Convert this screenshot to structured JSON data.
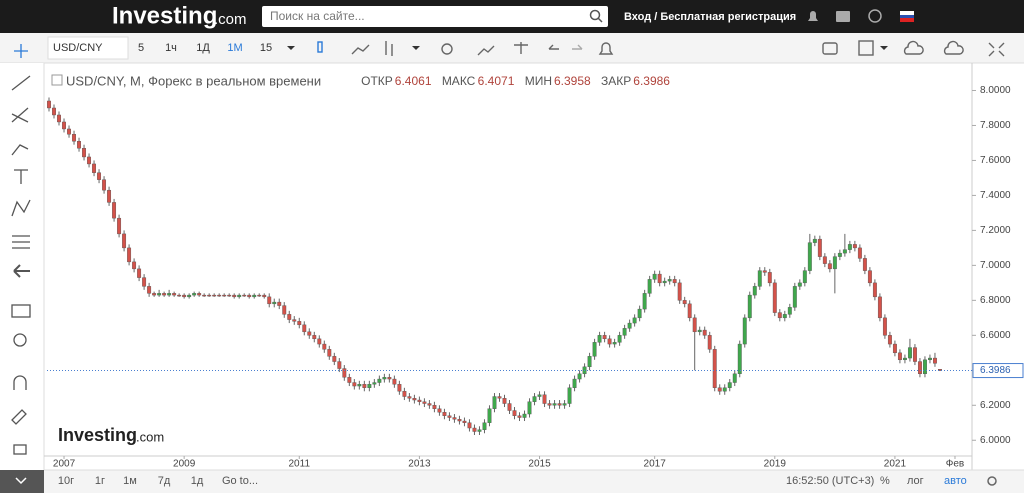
{
  "ui": {
    "logo": "Investing",
    "logo_suffix": ".com",
    "search_placeholder": "Поиск на сайте...",
    "login": "Вход / Бесплатная регистрация",
    "symbol": "USD/CNY",
    "intervals": [
      "5",
      "1ч",
      "1Д",
      "1М",
      "15"
    ],
    "ranges": [
      "10г",
      "1г",
      "1м",
      "7д",
      "1д",
      "Go to..."
    ],
    "clock": "16:52:50 (UTC+3)",
    "percent": "%",
    "log": "лог",
    "auto": "авто",
    "watermark": "Investing",
    "watermark_suffix": ".com"
  },
  "chart_data": {
    "type": "candlestick",
    "title": "USD/CNY, M, Форекс в реальном времени",
    "ohlc_labels": {
      "open": "ОТКР",
      "high": "МАКС",
      "low": "МИН",
      "close": "ЗАКР"
    },
    "colors": {
      "up": "#3fa84c",
      "down": "#d4524a"
    },
    "grid": false,
    "xlim": [
      -0.4,
      184.4
    ],
    "xticks": [
      {
        "value": 3,
        "label": "2007"
      },
      {
        "value": 27,
        "label": "2009"
      },
      {
        "value": 50,
        "label": "2011"
      },
      {
        "value": 74,
        "label": "2013"
      },
      {
        "value": 98,
        "label": "2015"
      },
      {
        "value": 121,
        "label": "2017"
      },
      {
        "value": 145,
        "label": "2019"
      },
      {
        "value": 169,
        "label": "2021"
      },
      {
        "value": 181,
        "label": "Фев"
      }
    ],
    "ylim": [
      5.91,
      8.14
    ],
    "yticks": [
      {
        "value": 6,
        "label": "6.0000"
      },
      {
        "value": 6.2,
        "label": "6.2000"
      },
      {
        "value": 6.4,
        "label": "6.4000"
      },
      {
        "value": 6.6,
        "label": "6.6000"
      },
      {
        "value": 6.8,
        "label": "6.8000"
      },
      {
        "value": 7,
        "label": "7.0000"
      },
      {
        "value": 7.2,
        "label": "7.2000"
      },
      {
        "value": 7.4,
        "label": "7.4000"
      },
      {
        "value": 7.6,
        "label": "7.6000"
      },
      {
        "value": 7.8,
        "label": "7.8000"
      },
      {
        "value": 8,
        "label": "8.0000"
      }
    ],
    "open": [
      7.94,
      7.9,
      7.86,
      7.82,
      7.78,
      7.75,
      7.71,
      7.67,
      7.62,
      7.58,
      7.53,
      7.49,
      7.43,
      7.36,
      7.27,
      7.18,
      7.1,
      7.02,
      6.98,
      6.93,
      6.88,
      6.84,
      6.83,
      6.84,
      6.83,
      6.84,
      6.83,
      6.83,
      6.82,
      6.83,
      6.84,
      6.83,
      6.83,
      6.83,
      6.83,
      6.83,
      6.83,
      6.83,
      6.82,
      6.83,
      6.83,
      6.82,
      6.83,
      6.83,
      6.82,
      6.78,
      6.79,
      6.77,
      6.72,
      6.69,
      6.68,
      6.66,
      6.62,
      6.6,
      6.58,
      6.55,
      6.52,
      6.48,
      6.45,
      6.41,
      6.36,
      6.33,
      6.31,
      6.32,
      6.3,
      6.32,
      6.33,
      6.35,
      6.36,
      6.35,
      6.32,
      6.28,
      6.25,
      6.24,
      6.23,
      6.22,
      6.21,
      6.2,
      6.18,
      6.16,
      6.14,
      6.13,
      6.12,
      6.11,
      6.1,
      6.07,
      6.05,
      6.06,
      6.1,
      6.18,
      6.25,
      6.24,
      6.21,
      6.17,
      6.14,
      6.13,
      6.15,
      6.22,
      6.25,
      6.26,
      6.21,
      6.2,
      6.21,
      6.2,
      6.21,
      6.3,
      6.35,
      6.38,
      6.42,
      6.48,
      6.56,
      6.6,
      6.58,
      6.55,
      6.56,
      6.6,
      6.64,
      6.67,
      6.7,
      6.75,
      6.84,
      6.92,
      6.95,
      6.9,
      6.91,
      6.92,
      6.9,
      6.8,
      6.78,
      6.7,
      6.62,
      6.63,
      6.6,
      6.52,
      6.3,
      6.28,
      6.3,
      6.33,
      6.38,
      6.55,
      6.7,
      6.83,
      6.88,
      6.97,
      6.96,
      6.9,
      6.73,
      6.7,
      6.72,
      6.76,
      6.88,
      6.9,
      6.97,
      7.13,
      7.15,
      7.05,
      7.01,
      6.98,
      7.05,
      7.07,
      7.09,
      7.12,
      7.1,
      7.04,
      6.97,
      6.9,
      6.82,
      6.7,
      6.6,
      6.55,
      6.5,
      6.46,
      6.47,
      6.53,
      6.45,
      6.38,
      6.46,
      6.47,
      6.4061
    ],
    "high": [
      7.96,
      7.92,
      7.88,
      7.84,
      7.8,
      7.77,
      7.73,
      7.69,
      7.64,
      7.6,
      7.55,
      7.51,
      7.45,
      7.38,
      7.29,
      7.2,
      7.12,
      7.04,
      7.0,
      6.95,
      6.9,
      6.85,
      6.86,
      6.85,
      6.86,
      6.85,
      6.84,
      6.84,
      6.84,
      6.85,
      6.85,
      6.84,
      6.84,
      6.84,
      6.84,
      6.84,
      6.84,
      6.84,
      6.84,
      6.84,
      6.84,
      6.84,
      6.84,
      6.84,
      6.84,
      6.81,
      6.81,
      6.79,
      6.74,
      6.71,
      6.7,
      6.68,
      6.64,
      6.62,
      6.6,
      6.57,
      6.54,
      6.5,
      6.47,
      6.43,
      6.38,
      6.35,
      6.34,
      6.34,
      6.34,
      6.35,
      6.37,
      6.38,
      6.38,
      6.37,
      6.34,
      6.3,
      6.27,
      6.26,
      6.25,
      6.24,
      6.23,
      6.22,
      6.2,
      6.18,
      6.16,
      6.15,
      6.14,
      6.13,
      6.12,
      6.09,
      6.08,
      6.12,
      6.2,
      6.27,
      6.27,
      6.26,
      6.23,
      6.19,
      6.16,
      6.17,
      6.24,
      6.27,
      6.28,
      6.28,
      6.23,
      6.23,
      6.23,
      6.23,
      6.32,
      6.37,
      6.4,
      6.44,
      6.5,
      6.58,
      6.62,
      6.62,
      6.6,
      6.58,
      6.62,
      6.66,
      6.69,
      6.72,
      6.77,
      6.86,
      6.94,
      6.97,
      6.97,
      6.93,
      6.94,
      6.94,
      6.92,
      6.82,
      6.8,
      6.72,
      6.65,
      6.65,
      6.62,
      6.54,
      6.32,
      6.32,
      6.35,
      6.4,
      6.57,
      6.72,
      6.85,
      6.9,
      6.99,
      6.99,
      6.98,
      6.92,
      6.75,
      6.74,
      6.78,
      6.9,
      6.92,
      6.99,
      7.18,
      7.17,
      7.17,
      7.07,
      7.03,
      7.07,
      7.09,
      7.18,
      7.14,
      7.14,
      7.12,
      7.06,
      6.99,
      6.92,
      6.84,
      6.72,
      6.62,
      6.57,
      6.52,
      6.49,
      6.58,
      6.55,
      6.47,
      6.48,
      6.49,
      6.5,
      6.4071
    ],
    "low": [
      7.88,
      7.84,
      7.8,
      7.76,
      7.73,
      7.69,
      7.65,
      7.6,
      7.56,
      7.51,
      7.47,
      7.41,
      7.34,
      7.25,
      7.16,
      7.08,
      7.0,
      6.96,
      6.91,
      6.86,
      6.82,
      6.82,
      6.82,
      6.82,
      6.82,
      6.82,
      6.82,
      6.81,
      6.81,
      6.82,
      6.82,
      6.82,
      6.82,
      6.82,
      6.82,
      6.82,
      6.82,
      6.81,
      6.81,
      6.82,
      6.81,
      6.81,
      6.82,
      6.81,
      6.76,
      6.76,
      6.75,
      6.7,
      6.67,
      6.66,
      6.64,
      6.6,
      6.58,
      6.56,
      6.53,
      6.5,
      6.46,
      6.43,
      6.39,
      6.34,
      6.31,
      6.29,
      6.29,
      6.28,
      6.28,
      6.3,
      6.31,
      6.33,
      6.33,
      6.3,
      6.26,
      6.23,
      6.22,
      6.21,
      6.2,
      6.19,
      6.18,
      6.16,
      6.14,
      6.12,
      6.11,
      6.1,
      6.09,
      6.08,
      6.05,
      6.03,
      6.03,
      6.04,
      6.08,
      6.16,
      6.22,
      6.19,
      6.15,
      6.12,
      6.11,
      6.11,
      6.13,
      6.2,
      6.23,
      6.19,
      6.18,
      6.18,
      6.18,
      6.18,
      6.19,
      6.28,
      6.33,
      6.36,
      6.4,
      6.46,
      6.54,
      6.56,
      6.53,
      6.53,
      6.54,
      6.58,
      6.62,
      6.65,
      6.68,
      6.73,
      6.82,
      6.9,
      6.88,
      6.88,
      6.89,
      6.88,
      6.78,
      6.76,
      6.68,
      6.4,
      6.6,
      6.58,
      6.5,
      6.28,
      6.26,
      6.26,
      6.28,
      6.31,
      6.36,
      6.53,
      6.68,
      6.81,
      6.86,
      6.94,
      6.88,
      6.71,
      6.68,
      6.68,
      6.7,
      6.74,
      6.86,
      6.88,
      6.95,
      7.11,
      7.03,
      6.99,
      6.96,
      6.84,
      7.03,
      7.05,
      7.07,
      7.08,
      7.02,
      6.95,
      6.88,
      6.8,
      6.68,
      6.58,
      6.53,
      6.48,
      6.44,
      6.44,
      6.45,
      6.43,
      6.36,
      6.36,
      6.44,
      6.42,
      6.3958
    ],
    "close": [
      7.9,
      7.86,
      7.82,
      7.78,
      7.75,
      7.71,
      7.67,
      7.62,
      7.58,
      7.53,
      7.49,
      7.43,
      7.36,
      7.27,
      7.18,
      7.1,
      7.02,
      6.98,
      6.93,
      6.88,
      6.84,
      6.83,
      6.84,
      6.83,
      6.84,
      6.83,
      6.83,
      6.82,
      6.83,
      6.84,
      6.83,
      6.83,
      6.83,
      6.83,
      6.83,
      6.83,
      6.83,
      6.82,
      6.83,
      6.83,
      6.82,
      6.83,
      6.83,
      6.82,
      6.78,
      6.79,
      6.77,
      6.72,
      6.69,
      6.68,
      6.66,
      6.62,
      6.6,
      6.58,
      6.55,
      6.52,
      6.48,
      6.45,
      6.41,
      6.36,
      6.33,
      6.31,
      6.32,
      6.3,
      6.32,
      6.33,
      6.35,
      6.36,
      6.35,
      6.32,
      6.28,
      6.25,
      6.24,
      6.23,
      6.22,
      6.21,
      6.2,
      6.18,
      6.16,
      6.14,
      6.13,
      6.12,
      6.11,
      6.1,
      6.07,
      6.05,
      6.06,
      6.1,
      6.18,
      6.25,
      6.24,
      6.21,
      6.17,
      6.14,
      6.13,
      6.15,
      6.22,
      6.25,
      6.26,
      6.21,
      6.2,
      6.21,
      6.2,
      6.21,
      6.3,
      6.35,
      6.38,
      6.42,
      6.48,
      6.56,
      6.6,
      6.58,
      6.55,
      6.56,
      6.6,
      6.64,
      6.67,
      6.7,
      6.75,
      6.84,
      6.92,
      6.95,
      6.9,
      6.91,
      6.92,
      6.9,
      6.8,
      6.78,
      6.7,
      6.62,
      6.63,
      6.6,
      6.52,
      6.3,
      6.28,
      6.3,
      6.33,
      6.38,
      6.55,
      6.7,
      6.83,
      6.88,
      6.97,
      6.96,
      6.9,
      6.73,
      6.7,
      6.72,
      6.76,
      6.88,
      6.9,
      6.97,
      7.13,
      7.15,
      7.05,
      7.01,
      6.98,
      7.05,
      7.07,
      7.09,
      7.12,
      7.1,
      7.04,
      6.97,
      6.9,
      6.82,
      6.7,
      6.6,
      6.55,
      6.5,
      6.46,
      6.47,
      6.53,
      6.45,
      6.38,
      6.46,
      6.47,
      6.44,
      6.3986
    ]
  }
}
